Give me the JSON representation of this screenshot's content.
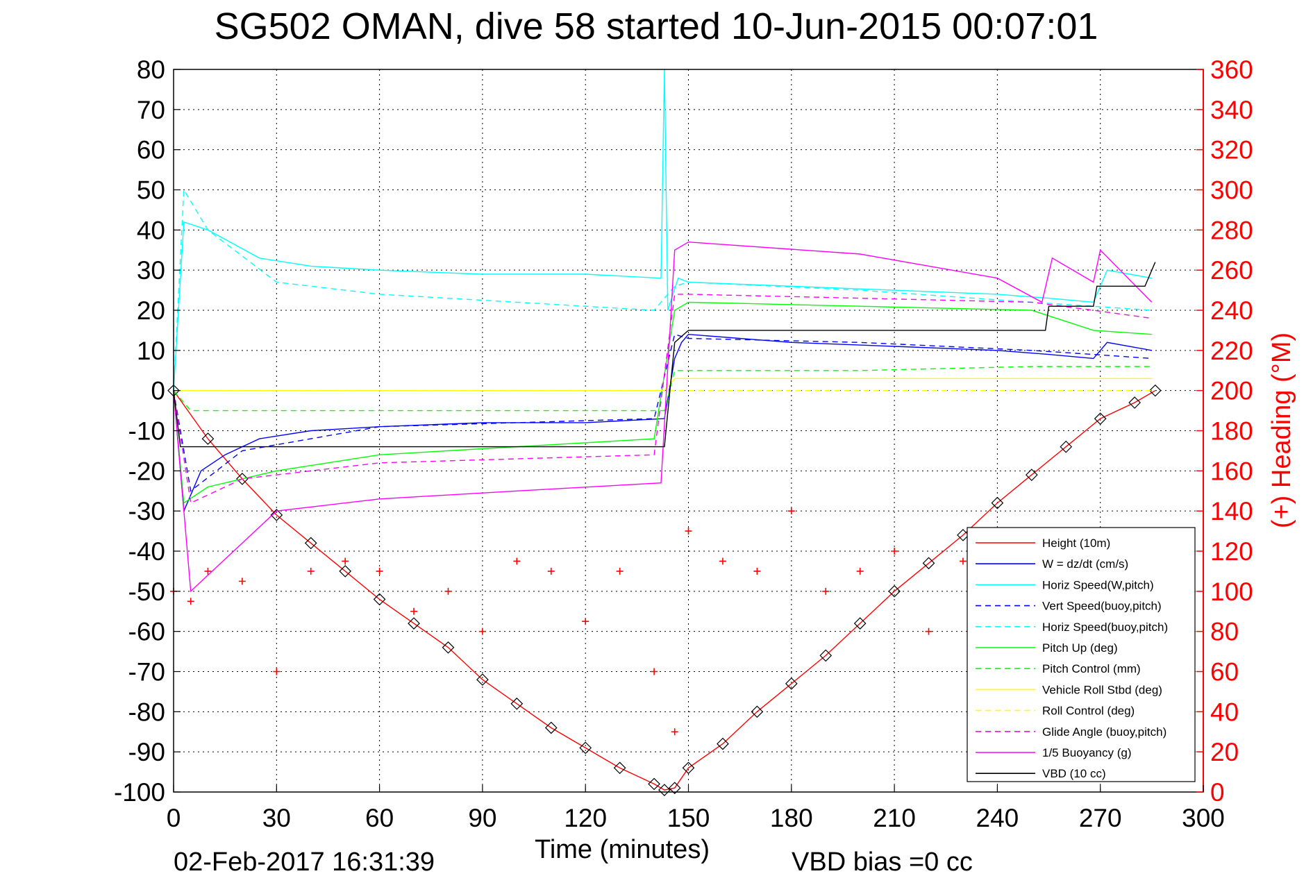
{
  "title": "SG502 OMAN, dive 58 started 10-Jun-2015 00:07:01",
  "footer": {
    "timestamp": "02-Feb-2017 16:31:39",
    "vbd_bias": "VBD bias =0 cc"
  },
  "colors": {
    "height": "#ff0000",
    "w": "#0000ff",
    "horiz_speed": "#00ffff",
    "vert_speed_buoy": "#0000ff",
    "horiz_speed_buoy": "#00ffff",
    "pitch_up": "#00ff00",
    "pitch_control": "#00ff00",
    "vehicle_roll": "#ffff00",
    "roll_control": "#ffff00",
    "glide_angle": "#ff00ff",
    "buoyancy": "#ff00ff",
    "vbd": "#000000",
    "heading": "#ff0000"
  },
  "chart_data": {
    "type": "line",
    "xlabel": "Time (minutes)",
    "ylabel_right": "(+) Heading (°M)",
    "xlim": [
      0,
      300
    ],
    "ylim": [
      -100,
      80
    ],
    "ylim_right": [
      0,
      360
    ],
    "xticks": [
      "0",
      "30",
      "60",
      "90",
      "120",
      "150",
      "180",
      "210",
      "240",
      "270",
      "300"
    ],
    "yticks": [
      "80",
      "70",
      "60",
      "50",
      "40",
      "30",
      "20",
      "10",
      "0",
      "-10",
      "-20",
      "-30",
      "-40",
      "-50",
      "-60",
      "-70",
      "-80",
      "-90",
      "-100"
    ],
    "yticks_right": [
      "360",
      "340",
      "320",
      "300",
      "280",
      "260",
      "240",
      "220",
      "200",
      "180",
      "160",
      "140",
      "120",
      "100",
      "80",
      "60",
      "40",
      "20",
      "0"
    ],
    "grid": true,
    "legend_position": "bottom-right",
    "legend": [
      "Height (10m)",
      "W = dz/dt (cm/s)",
      "Horiz Speed(W,pitch)",
      "Vert Speed(buoy,pitch)",
      "Horiz Speed(buoy,pitch)",
      "Pitch Up (deg)",
      "Pitch Control (mm)",
      "Vehicle Roll Stbd (deg)",
      "Roll Control (deg)",
      "Glide Angle (buoy,pitch)",
      "1/5 Buoyancy (g)",
      "VBD (10 cc)"
    ],
    "series": [
      {
        "name": "Height (10m)",
        "x": [
          0,
          10,
          20,
          30,
          40,
          50,
          60,
          70,
          80,
          90,
          100,
          110,
          120,
          130,
          140,
          143,
          146,
          150,
          160,
          170,
          180,
          190,
          200,
          210,
          220,
          230,
          240,
          250,
          260,
          270,
          280,
          286
        ],
        "y": [
          0,
          -12,
          -22,
          -31,
          -38,
          -45,
          -52,
          -58,
          -64,
          -72,
          -78,
          -84,
          -89,
          -94,
          -98,
          -99.5,
          -99,
          -94,
          -88,
          -80,
          -73,
          -66,
          -58,
          -50,
          -43,
          -36,
          -28,
          -21,
          -14,
          -7,
          -3,
          0
        ]
      },
      {
        "name": "W = dz/dt (cm/s)",
        "x": [
          0,
          3,
          8,
          15,
          25,
          40,
          60,
          90,
          120,
          143,
          146,
          148,
          150,
          180,
          210,
          240,
          255,
          268,
          272,
          285
        ],
        "y": [
          0,
          -30,
          -20,
          -16,
          -12,
          -10,
          -9,
          -8,
          -8,
          -7,
          8,
          12,
          14,
          12,
          11,
          10,
          9,
          8,
          12,
          10
        ]
      },
      {
        "name": "Horiz Speed(W,pitch)",
        "x": [
          0,
          3,
          10,
          25,
          40,
          60,
          90,
          120,
          142,
          143,
          144,
          147,
          150,
          180,
          210,
          240,
          255,
          268,
          272,
          285
        ],
        "y": [
          0,
          42,
          40,
          33,
          31,
          30,
          29,
          29,
          28,
          80,
          20,
          28,
          27,
          26,
          25,
          24,
          23,
          22,
          30,
          28
        ]
      },
      {
        "name": "Vert Speed(buoy,pitch)",
        "x": [
          0,
          5,
          20,
          60,
          100,
          140,
          146,
          150,
          200,
          250,
          268,
          285
        ],
        "y": [
          0,
          -25,
          -15,
          -9,
          -8,
          -7,
          14,
          13,
          12,
          10,
          9,
          8
        ]
      },
      {
        "name": "Horiz Speed(buoy,pitch)",
        "x": [
          0,
          3,
          10,
          30,
          60,
          100,
          140,
          146,
          150,
          200,
          250,
          268,
          285
        ],
        "y": [
          0,
          50,
          40,
          27,
          24,
          22,
          20,
          26,
          27,
          25,
          22,
          21,
          20
        ]
      },
      {
        "name": "Pitch Up (deg)",
        "x": [
          0,
          3,
          10,
          30,
          60,
          100,
          140,
          146,
          150,
          200,
          250,
          268,
          285
        ],
        "y": [
          0,
          -28,
          -24,
          -20,
          -16,
          -14,
          -12,
          20,
          22,
          21,
          20,
          15,
          14
        ]
      },
      {
        "name": "Pitch Control (mm)",
        "x": [
          0,
          5,
          50,
          100,
          143,
          146,
          150,
          200,
          250,
          285
        ],
        "y": [
          0,
          -5,
          -5,
          -5,
          -5,
          5,
          5,
          5,
          6,
          6
        ]
      },
      {
        "name": "Vehicle Roll Stbd (deg)",
        "x": [
          0,
          5,
          50,
          100,
          143,
          146,
          150,
          200,
          250,
          285
        ],
        "y": [
          0,
          0,
          0,
          0,
          0,
          3,
          3,
          3,
          3,
          3
        ]
      },
      {
        "name": "Roll Control (deg)",
        "x": [
          0,
          5,
          50,
          100,
          143,
          146,
          150,
          200,
          250,
          285
        ],
        "y": [
          0,
          0,
          0,
          0,
          0,
          0,
          0,
          0,
          0,
          0
        ]
      },
      {
        "name": "Glide Angle (buoy,pitch)",
        "x": [
          0,
          5,
          20,
          60,
          100,
          140,
          146,
          150,
          200,
          250,
          268,
          285
        ],
        "y": [
          0,
          -28,
          -22,
          -18,
          -17,
          -16,
          24,
          24,
          23,
          22,
          20,
          18
        ]
      },
      {
        "name": "1/5 Buoyancy (g)",
        "x": [
          0,
          5,
          20,
          30,
          60,
          100,
          142,
          146,
          150,
          200,
          240,
          253,
          256,
          268,
          270,
          285
        ],
        "y": [
          0,
          -50,
          -38,
          -30,
          -27,
          -25,
          -23,
          35,
          37,
          34,
          28,
          22,
          33,
          27,
          35,
          22
        ]
      },
      {
        "name": "VBD (10 cc)",
        "x": [
          0,
          2,
          40,
          80,
          143,
          146,
          150,
          200,
          254,
          255,
          268,
          269,
          282,
          283,
          286
        ],
        "y": [
          0,
          -14,
          -14,
          -14,
          -14,
          12,
          15,
          15,
          15,
          21,
          21,
          26,
          26,
          26,
          32
        ]
      },
      {
        "name": "Heading",
        "x": [
          0,
          5,
          10,
          20,
          30,
          40,
          50,
          60,
          70,
          80,
          90,
          100,
          110,
          120,
          130,
          140,
          146,
          150,
          160,
          170,
          180,
          190,
          200,
          210,
          220,
          230,
          240,
          250,
          260,
          270,
          280,
          285
        ],
        "y": [
          100,
          95,
          110,
          105,
          60,
          110,
          115,
          110,
          90,
          100,
          80,
          115,
          110,
          85,
          110,
          60,
          30,
          130,
          115,
          110,
          140,
          100,
          110,
          120,
          80,
          115,
          110,
          100,
          130,
          115,
          110,
          100
        ]
      }
    ]
  }
}
